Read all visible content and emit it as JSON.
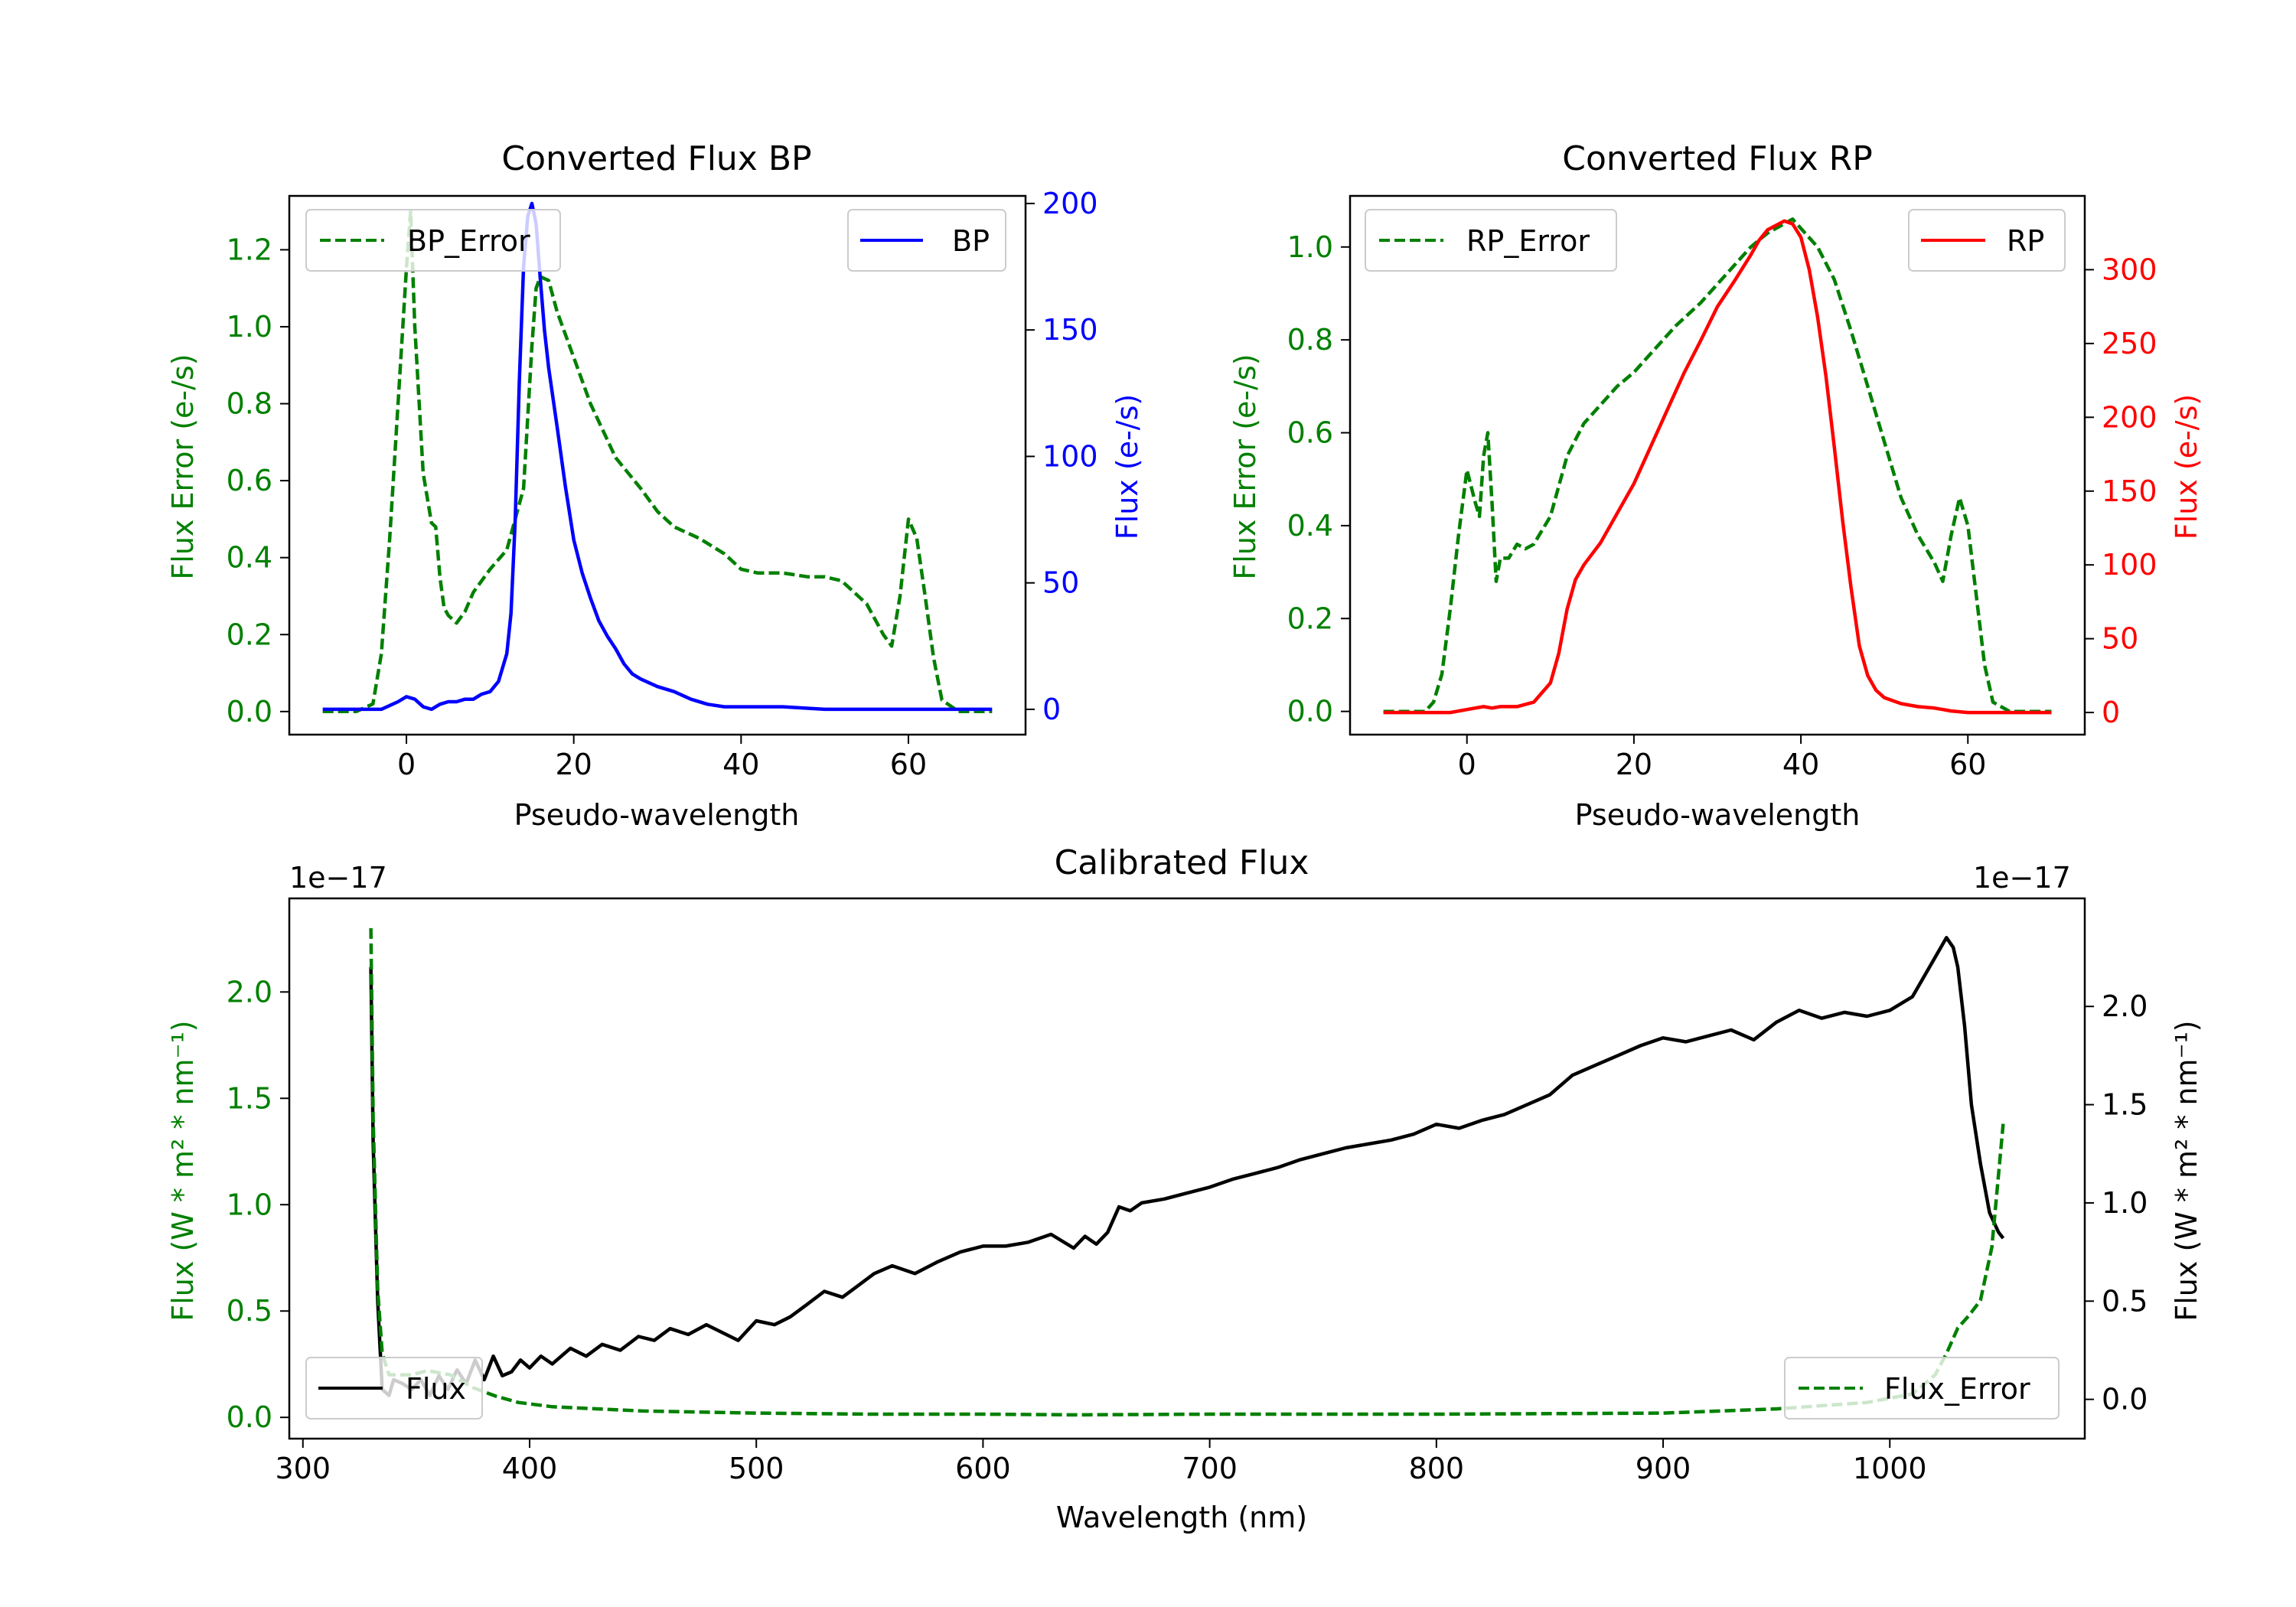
{
  "chart_data": [
    {
      "id": "bp",
      "type": "line",
      "title": "Converted Flux BP",
      "xlabel": "Pseudo-wavelength",
      "xlim": [
        -14,
        74
      ],
      "x_ticks": [
        0,
        20,
        40,
        60
      ],
      "x_tick_labels": [
        "0",
        "20",
        "40",
        "60"
      ],
      "left_axis": {
        "label": "Flux Error (e-/s)",
        "color": "#008000",
        "ylim": [
          -0.06,
          1.34
        ],
        "ticks": [
          0.0,
          0.2,
          0.4,
          0.6,
          0.8,
          1.0,
          1.2
        ],
        "tick_labels": [
          "0.0",
          "0.2",
          "0.4",
          "0.6",
          "0.8",
          "1.0",
          "1.2"
        ]
      },
      "right_axis": {
        "label": "Flux (e-/s)",
        "color": "#0000ff",
        "ylim": [
          -10,
          203
        ],
        "ticks": [
          0,
          50,
          100,
          150,
          200
        ],
        "tick_labels": [
          "0",
          "50",
          "100",
          "150",
          "200"
        ]
      },
      "series": [
        {
          "name": "BP_Error",
          "axis": "left",
          "color": "#008000",
          "dash": true,
          "x": [
            -10,
            -6,
            -4,
            -3,
            -2,
            -1,
            0,
            0.5,
            1,
            2,
            3,
            3.5,
            4,
            4.5,
            5,
            6,
            7,
            8,
            10,
            12,
            14,
            15,
            15.5,
            16,
            17,
            18,
            20,
            22,
            25,
            28,
            30,
            32,
            35,
            38,
            40,
            42,
            45,
            48,
            50,
            52,
            55,
            56,
            57,
            58,
            59,
            60,
            61,
            62,
            63,
            64,
            66,
            70
          ],
          "values": [
            0.0,
            0.0,
            0.02,
            0.15,
            0.45,
            0.8,
            1.15,
            1.3,
            1.0,
            0.62,
            0.49,
            0.48,
            0.35,
            0.27,
            0.25,
            0.23,
            0.26,
            0.31,
            0.37,
            0.42,
            0.58,
            0.95,
            1.1,
            1.13,
            1.12,
            1.04,
            0.92,
            0.8,
            0.66,
            0.58,
            0.52,
            0.48,
            0.45,
            0.41,
            0.37,
            0.36,
            0.36,
            0.35,
            0.35,
            0.34,
            0.28,
            0.24,
            0.2,
            0.17,
            0.3,
            0.5,
            0.45,
            0.3,
            0.14,
            0.03,
            0.0,
            0.0
          ]
        },
        {
          "name": "BP",
          "axis": "right",
          "color": "#0000ff",
          "dash": false,
          "x": [
            -10,
            -3,
            -1,
            0,
            1,
            2,
            3,
            4,
            5,
            6,
            7,
            8,
            9,
            10,
            11,
            12,
            12.5,
            13,
            13.5,
            14,
            14.5,
            15,
            15.5,
            16,
            16.5,
            17,
            18,
            19,
            20,
            21,
            22,
            23,
            24,
            25,
            26,
            27,
            28,
            30,
            32,
            34,
            36,
            38,
            40,
            45,
            50,
            55,
            60,
            65,
            70
          ],
          "values": [
            0,
            0,
            3,
            5,
            4,
            1,
            0,
            2,
            3,
            3,
            4,
            4,
            6,
            7,
            11,
            22,
            38,
            75,
            130,
            175,
            195,
            200,
            192,
            170,
            150,
            135,
            112,
            88,
            67,
            54,
            44,
            35,
            29,
            24,
            18,
            14,
            12,
            9,
            7,
            4,
            2,
            1,
            1,
            1,
            0,
            0,
            0,
            0,
            0
          ]
        }
      ],
      "legends": [
        {
          "entries": [
            "BP_Error"
          ],
          "location": "upper left"
        },
        {
          "entries": [
            "BP"
          ],
          "location": "upper right"
        }
      ]
    },
    {
      "id": "rp",
      "type": "line",
      "title": "Converted Flux RP",
      "xlabel": "Pseudo-wavelength",
      "xlim": [
        -14,
        74
      ],
      "x_ticks": [
        0,
        20,
        40,
        60
      ],
      "x_tick_labels": [
        "0",
        "20",
        "40",
        "60"
      ],
      "left_axis": {
        "label": "Flux Error (e-/s)",
        "color": "#008000",
        "ylim": [
          -0.05,
          1.11
        ],
        "ticks": [
          0.0,
          0.2,
          0.4,
          0.6,
          0.8,
          1.0
        ],
        "tick_labels": [
          "0.0",
          "0.2",
          "0.4",
          "0.6",
          "0.8",
          "1.0"
        ]
      },
      "right_axis": {
        "label": "Flux (e-/s)",
        "color": "#ff0000",
        "ylim": [
          -15,
          350
        ],
        "ticks": [
          0,
          50,
          100,
          150,
          200,
          250,
          300
        ],
        "tick_labels": [
          "0",
          "50",
          "100",
          "150",
          "200",
          "250",
          "300"
        ]
      },
      "series": [
        {
          "name": "RP_Error",
          "axis": "left",
          "color": "#008000",
          "dash": true,
          "x": [
            -10,
            -5,
            -4,
            -3,
            -2,
            -1,
            0,
            1,
            1.5,
            2,
            2.5,
            3,
            3.5,
            4,
            5,
            6,
            7,
            8,
            10,
            12,
            14,
            16,
            18,
            20,
            22,
            25,
            28,
            30,
            32,
            34,
            36,
            38,
            39,
            40,
            42,
            44,
            46,
            48,
            50,
            52,
            54,
            55,
            56,
            57,
            58,
            59,
            60,
            61,
            62,
            63,
            65,
            70
          ],
          "values": [
            0.0,
            0.0,
            0.02,
            0.08,
            0.22,
            0.38,
            0.52,
            0.45,
            0.42,
            0.55,
            0.6,
            0.45,
            0.28,
            0.33,
            0.33,
            0.36,
            0.35,
            0.36,
            0.42,
            0.55,
            0.62,
            0.66,
            0.7,
            0.73,
            0.77,
            0.83,
            0.88,
            0.92,
            0.96,
            1.0,
            1.03,
            1.05,
            1.06,
            1.04,
            1.0,
            0.93,
            0.82,
            0.7,
            0.58,
            0.46,
            0.38,
            0.35,
            0.32,
            0.28,
            0.38,
            0.46,
            0.4,
            0.25,
            0.1,
            0.02,
            0.0,
            0.0
          ]
        },
        {
          "name": "RP",
          "axis": "right",
          "color": "#ff0000",
          "dash": false,
          "x": [
            -10,
            -2,
            0,
            2,
            3,
            4,
            6,
            8,
            10,
            11,
            12,
            13,
            14,
            16,
            18,
            20,
            22,
            24,
            26,
            28,
            30,
            32,
            34,
            35,
            36,
            37,
            38,
            39,
            40,
            41,
            42,
            43,
            44,
            45,
            46,
            47,
            48,
            49,
            50,
            52,
            54,
            56,
            58,
            60,
            62,
            65,
            70
          ],
          "values": [
            0,
            0,
            2,
            4,
            3,
            4,
            4,
            7,
            20,
            40,
            70,
            90,
            100,
            115,
            135,
            155,
            180,
            205,
            230,
            252,
            275,
            292,
            310,
            320,
            327,
            330,
            333,
            331,
            322,
            300,
            268,
            228,
            180,
            130,
            85,
            45,
            25,
            15,
            10,
            6,
            4,
            3,
            1,
            0,
            0,
            0,
            0
          ]
        }
      ],
      "legends": [
        {
          "entries": [
            "RP_Error"
          ],
          "location": "upper left"
        },
        {
          "entries": [
            "RP"
          ],
          "location": "upper right"
        }
      ]
    },
    {
      "id": "cal",
      "type": "line",
      "title": "Calibrated Flux",
      "xlabel": "Wavelength (nm)",
      "xlim": [
        294,
        1086
      ],
      "x_ticks": [
        300,
        400,
        500,
        600,
        700,
        800,
        900,
        1000
      ],
      "x_tick_labels": [
        "300",
        "400",
        "500",
        "600",
        "700",
        "800",
        "900",
        "1000"
      ],
      "left_axis": {
        "label": "Flux (W * m² * nm⁻¹)",
        "color": "#008000",
        "offset_text": "1e−17",
        "ylim": [
          -0.1,
          2.44
        ],
        "ticks": [
          0.0,
          0.5,
          1.0,
          1.5,
          2.0
        ],
        "tick_labels": [
          "0.0",
          "0.5",
          "1.0",
          "1.5",
          "2.0"
        ]
      },
      "right_axis": {
        "label": "Flux (W * m² * nm⁻¹)",
        "color": "#000000",
        "offset_text": "1e−17",
        "ylim": [
          -0.2,
          2.55
        ],
        "ticks": [
          0.0,
          0.5,
          1.0,
          1.5,
          2.0
        ],
        "tick_labels": [
          "0.0",
          "0.5",
          "1.0",
          "1.5",
          "2.0"
        ]
      },
      "series": [
        {
          "name": "Flux",
          "axis": "right",
          "color": "#000000",
          "dash": false,
          "x": [
            330,
            331,
            333,
            335,
            338,
            340,
            344,
            348,
            352,
            356,
            360,
            364,
            368,
            372,
            376,
            380,
            384,
            388,
            392,
            396,
            400,
            405,
            410,
            418,
            425,
            432,
            440,
            448,
            455,
            462,
            470,
            478,
            485,
            492,
            500,
            508,
            515,
            522,
            530,
            538,
            545,
            552,
            560,
            570,
            580,
            590,
            600,
            610,
            620,
            630,
            640,
            645,
            650,
            655,
            660,
            665,
            670,
            680,
            690,
            700,
            710,
            720,
            730,
            740,
            750,
            760,
            770,
            780,
            790,
            800,
            810,
            820,
            830,
            840,
            850,
            860,
            870,
            880,
            890,
            900,
            910,
            920,
            930,
            940,
            950,
            960,
            970,
            980,
            990,
            1000,
            1010,
            1020,
            1025,
            1028,
            1030,
            1033,
            1036,
            1040,
            1044,
            1048,
            1050
          ],
          "values": [
            2.2,
            1.3,
            0.5,
            0.05,
            0.02,
            0.1,
            0.08,
            0.05,
            0.1,
            0.02,
            0.12,
            0.05,
            0.15,
            0.08,
            0.2,
            0.1,
            0.22,
            0.12,
            0.14,
            0.2,
            0.16,
            0.22,
            0.18,
            0.26,
            0.22,
            0.28,
            0.25,
            0.32,
            0.3,
            0.36,
            0.33,
            0.38,
            0.34,
            0.3,
            0.4,
            0.38,
            0.42,
            0.48,
            0.55,
            0.52,
            0.58,
            0.64,
            0.68,
            0.64,
            0.7,
            0.75,
            0.78,
            0.78,
            0.8,
            0.84,
            0.77,
            0.83,
            0.79,
            0.85,
            0.98,
            0.96,
            1.0,
            1.02,
            1.05,
            1.08,
            1.12,
            1.15,
            1.18,
            1.22,
            1.25,
            1.28,
            1.3,
            1.32,
            1.35,
            1.4,
            1.38,
            1.42,
            1.45,
            1.5,
            1.55,
            1.65,
            1.7,
            1.75,
            1.8,
            1.84,
            1.82,
            1.85,
            1.88,
            1.83,
            1.92,
            1.98,
            1.94,
            1.97,
            1.95,
            1.98,
            2.05,
            2.25,
            2.35,
            2.3,
            2.2,
            1.9,
            1.5,
            1.2,
            0.95,
            0.85,
            0.82
          ]
        },
        {
          "name": "Flux_Error",
          "axis": "left",
          "color": "#008000",
          "dash": true,
          "x": [
            330,
            331,
            333,
            335,
            338,
            342,
            348,
            355,
            365,
            375,
            385,
            395,
            410,
            430,
            450,
            500,
            550,
            600,
            640,
            700,
            800,
            900,
            950,
            990,
            1010,
            1020,
            1025,
            1030,
            1035,
            1040,
            1045,
            1050
          ],
          "values": [
            2.3,
            1.4,
            0.6,
            0.3,
            0.2,
            0.2,
            0.2,
            0.22,
            0.2,
            0.14,
            0.1,
            0.07,
            0.05,
            0.04,
            0.03,
            0.02,
            0.015,
            0.015,
            0.012,
            0.015,
            0.015,
            0.02,
            0.04,
            0.07,
            0.11,
            0.2,
            0.3,
            0.42,
            0.48,
            0.55,
            0.8,
            1.38
          ]
        }
      ],
      "legends": [
        {
          "entries": [
            "Flux"
          ],
          "location": "lower left"
        },
        {
          "entries": [
            "Flux_Error"
          ],
          "location": "lower right"
        }
      ]
    }
  ]
}
